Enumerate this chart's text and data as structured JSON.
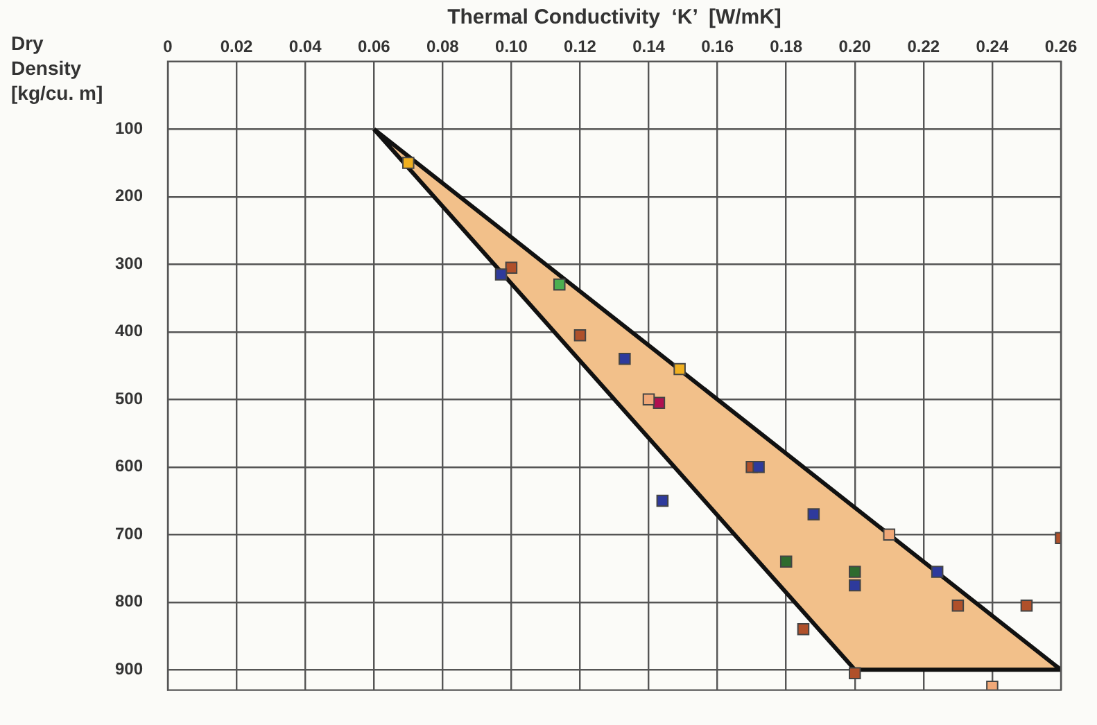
{
  "chart_data": {
    "type": "scatter",
    "xlabel": "Thermal Conductivity  ‘K’  [W/mK]",
    "ylabel": "Dry Density [kg/cu. m]",
    "xlim": [
      0,
      0.26
    ],
    "xticks": [
      0,
      {
        "value": 0.02,
        "label": "0.02"
      },
      {
        "value": 0.04,
        "label": "0.04"
      },
      {
        "value": 0.06,
        "label": "0.06"
      },
      {
        "value": 0.08,
        "label": "0.08"
      },
      {
        "value": 0.1,
        "label": "0.10"
      },
      {
        "value": 0.12,
        "label": "0.12"
      },
      {
        "value": 0.14,
        "label": "0.14"
      },
      {
        "value": 0.16,
        "label": "0.16"
      },
      {
        "value": 0.18,
        "label": "0.18"
      },
      {
        "value": 0.2,
        "label": "0.20"
      },
      {
        "value": 0.22,
        "label": "0.22"
      },
      {
        "value": 0.24,
        "label": "0.24"
      },
      {
        "value": 0.26,
        "label": "0.26"
      }
    ],
    "ylim": [
      930,
      0
    ],
    "yticks": [
      100,
      200,
      300,
      400,
      500,
      600,
      700,
      800,
      900
    ],
    "grid": true,
    "marker": "square",
    "series": [
      {
        "type": "area",
        "marker": "none",
        "color": "#f2c08a",
        "x": [
          0.06,
          0.26,
          0.2,
          0.06
        ],
        "values": [
          100,
          900,
          900,
          100
        ]
      },
      {
        "color": "#f0b020",
        "x": [
          0.07,
          0.149
        ],
        "values": [
          150,
          455
        ]
      },
      {
        "color": "#2e3a9c",
        "x": [
          0.097,
          0.133,
          0.144,
          0.172,
          0.188,
          0.2,
          0.224
        ],
        "values": [
          315,
          440,
          650,
          600,
          670,
          775,
          755
        ]
      },
      {
        "color": "#b0502a",
        "x": [
          0.1,
          0.12,
          0.17,
          0.23,
          0.25,
          0.26,
          0.185,
          0.2
        ],
        "values": [
          305,
          405,
          600,
          805,
          805,
          705,
          840,
          905
        ]
      },
      {
        "color": "#4caf50",
        "x": [
          0.114
        ],
        "values": [
          330
        ]
      },
      {
        "color": "#2e6b2e",
        "x": [
          0.18,
          0.2
        ],
        "values": [
          740,
          755
        ]
      },
      {
        "color": "#f0a878",
        "x": [
          0.14,
          0.21,
          0.24
        ],
        "values": [
          500,
          700,
          925
        ]
      },
      {
        "color": "#b01050",
        "x": [
          0.143
        ],
        "values": [
          505
        ]
      }
    ]
  }
}
